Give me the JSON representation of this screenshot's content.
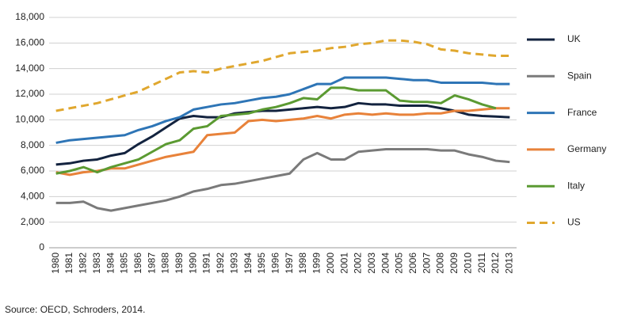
{
  "chart_data": {
    "type": "line",
    "categories": [
      "1980",
      "1981",
      "1982",
      "1983",
      "1984",
      "1985",
      "1986",
      "1987",
      "1988",
      "1989",
      "1990",
      "1991",
      "1992",
      "1993",
      "1994",
      "1995",
      "1996",
      "1997",
      "1998",
      "1999",
      "2000",
      "2001",
      "2002",
      "2003",
      "2004",
      "2005",
      "2006",
      "2007",
      "2008",
      "2009",
      "2010",
      "2011",
      "2012",
      "2013"
    ],
    "series": [
      {
        "name": "UK",
        "color": "#13233f",
        "dashed": false,
        "values": [
          6500,
          6600,
          6800,
          6900,
          7200,
          7400,
          8100,
          8700,
          9400,
          10100,
          10300,
          10200,
          10200,
          10500,
          10600,
          10700,
          10700,
          10800,
          10900,
          11000,
          10900,
          11000,
          11300,
          11200,
          11200,
          11100,
          11100,
          11100,
          10900,
          10700,
          10400,
          10300,
          10250,
          10200
        ]
      },
      {
        "name": "Spain",
        "color": "#7a7a7a",
        "dashed": false,
        "values": [
          3500,
          3500,
          3600,
          3100,
          2900,
          3100,
          3300,
          3500,
          3700,
          4000,
          4400,
          4600,
          4900,
          5000,
          5200,
          5400,
          5600,
          5800,
          6900,
          7400,
          6900,
          6900,
          7500,
          7600,
          7700,
          7700,
          7700,
          7700,
          7600,
          7600,
          7300,
          7100,
          6800,
          6700
        ]
      },
      {
        "name": "France",
        "color": "#2e75b6",
        "dashed": false,
        "values": [
          8200,
          8400,
          8500,
          8600,
          8700,
          8800,
          9200,
          9500,
          9900,
          10200,
          10800,
          11000,
          11200,
          11300,
          11500,
          11700,
          11800,
          12000,
          12400,
          12800,
          12800,
          13300,
          13300,
          13300,
          13300,
          13200,
          13100,
          13100,
          12900,
          12900,
          12900,
          12900,
          12800,
          12800
        ]
      },
      {
        "name": "Germany",
        "color": "#e8823a",
        "dashed": false,
        "values": [
          5900,
          5700,
          5900,
          6000,
          6200,
          6200,
          6500,
          6800,
          7100,
          7300,
          7500,
          8800,
          8900,
          9000,
          9900,
          10000,
          9900,
          10000,
          10100,
          10300,
          10100,
          10400,
          10500,
          10400,
          10500,
          10400,
          10400,
          10500,
          10500,
          10700,
          10700,
          10800,
          10900,
          10900
        ]
      },
      {
        "name": "Italy",
        "color": "#5b9a32",
        "dashed": false,
        "values": [
          5800,
          6000,
          6300,
          5900,
          6300,
          6600,
          6900,
          7500,
          8100,
          8400,
          9300,
          9500,
          10300,
          10400,
          10500,
          10800,
          11000,
          11300,
          11700,
          11600,
          12500,
          12500,
          12300,
          12300,
          12300,
          11500,
          11400,
          11400,
          11300,
          11900,
          11600,
          11200,
          10900,
          null
        ]
      },
      {
        "name": "US",
        "color": "#e0a72e",
        "dashed": true,
        "values": [
          10700,
          10900,
          11100,
          11300,
          11600,
          11900,
          12200,
          12700,
          13200,
          13700,
          13800,
          13700,
          14000,
          14200,
          14400,
          14600,
          14900,
          15200,
          15300,
          15400,
          15600,
          15700,
          15900,
          16000,
          16200,
          16200,
          16100,
          15900,
          15500,
          15400,
          15200,
          15100,
          15000,
          15000
        ]
      }
    ],
    "ylim": [
      0,
      18000
    ],
    "yticks": [
      0,
      {
        "value": 2000,
        "label": "2,000"
      },
      {
        "value": 4000,
        "label": "4,000"
      },
      {
        "value": 6000,
        "label": "6,000"
      },
      {
        "value": 8000,
        "label": "8,000"
      },
      {
        "value": 10000,
        "label": "10,000"
      },
      {
        "value": 12000,
        "label": "12,000"
      },
      {
        "value": 14000,
        "label": "14,000"
      },
      {
        "value": 16000,
        "label": "16,000"
      },
      {
        "value": 18000,
        "label": "18,000"
      }
    ],
    "grid": true,
    "legend": "right",
    "source": "Source: OECD, Schroders, 2014."
  }
}
